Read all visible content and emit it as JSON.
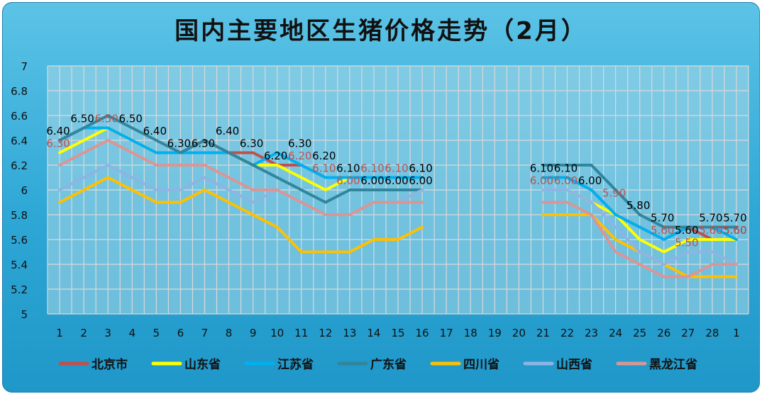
{
  "chart_data": {
    "type": "line",
    "title": "国内主要地区生猪价格走势（2月）",
    "xlabel": "",
    "ylabel": "",
    "ylim": [
      5,
      7
    ],
    "y_ticks": [
      "5",
      "5.2",
      "5.4",
      "5.6",
      "5.8",
      "6",
      "6.2",
      "6.4",
      "6.6",
      "6.8",
      "7"
    ],
    "categories": [
      "1",
      "2",
      "3",
      "4",
      "5",
      "6",
      "7",
      "8",
      "9",
      "10",
      "11",
      "12",
      "13",
      "14",
      "15",
      "16",
      "17",
      "18",
      "19",
      "20",
      "21",
      "22",
      "23",
      "24",
      "25",
      "26",
      "27",
      "28",
      "1"
    ],
    "grid": true,
    "legend_position": "bottom",
    "series": [
      {
        "name": "北京市",
        "color": "#c0504d",
        "values": [
          6.4,
          6.5,
          6.5,
          6.4,
          6.3,
          6.3,
          6.4,
          6.3,
          6.3,
          6.2,
          6.2,
          6.1,
          6.1,
          6.1,
          6.1,
          6.1,
          null,
          null,
          null,
          null,
          6.1,
          6.1,
          6.0,
          5.8,
          5.7,
          5.6,
          5.7,
          5.6,
          5.6
        ]
      },
      {
        "name": "山东省",
        "color": "#ffff00",
        "values": [
          6.3,
          6.4,
          6.5,
          6.4,
          6.3,
          6.3,
          6.3,
          6.3,
          6.2,
          6.2,
          6.1,
          6.0,
          6.1,
          6.1,
          6.1,
          6.1,
          null,
          null,
          null,
          null,
          6.0,
          6.0,
          5.9,
          5.8,
          5.6,
          5.5,
          5.6,
          5.6,
          5.6
        ]
      },
      {
        "name": "江苏省",
        "color": "#00b0f0",
        "values": [
          6.4,
          6.5,
          6.5,
          6.4,
          6.3,
          6.3,
          6.3,
          6.3,
          6.2,
          6.3,
          6.2,
          6.1,
          6.1,
          6.1,
          6.1,
          6.1,
          null,
          null,
          null,
          null,
          6.1,
          6.1,
          6.0,
          5.8,
          5.7,
          5.6,
          5.7,
          5.7,
          5.6
        ]
      },
      {
        "name": "广东省",
        "color": "#31859c",
        "values": [
          6.4,
          6.5,
          6.6,
          6.5,
          6.4,
          6.3,
          6.4,
          6.3,
          6.2,
          6.1,
          6.0,
          5.9,
          6.0,
          6.0,
          6.0,
          6.0,
          null,
          null,
          null,
          null,
          6.2,
          6.2,
          6.2,
          6.0,
          5.8,
          5.7,
          5.7,
          5.7,
          5.7
        ]
      },
      {
        "name": "四川省",
        "color": "#ffc000",
        "values": [
          5.9,
          6.0,
          6.1,
          6.0,
          5.9,
          5.9,
          6.0,
          5.9,
          5.8,
          5.7,
          5.5,
          5.5,
          5.5,
          5.6,
          5.6,
          5.7,
          null,
          null,
          null,
          null,
          5.8,
          5.8,
          5.8,
          5.6,
          5.5,
          5.4,
          5.3,
          5.3,
          5.3
        ]
      },
      {
        "name": "山西省",
        "color": "#8eb4e3",
        "values": [
          6.0,
          6.1,
          6.2,
          6.1,
          6.0,
          6.0,
          6.1,
          6.0,
          5.9,
          6.0,
          5.9,
          5.8,
          5.8,
          5.9,
          5.9,
          6.0,
          null,
          null,
          null,
          null,
          6.0,
          6.0,
          5.9,
          5.7,
          5.5,
          5.4,
          5.5,
          5.5,
          5.4
        ]
      },
      {
        "name": "黑龙江省",
        "color": "#d99694",
        "values": [
          6.2,
          6.3,
          6.4,
          6.3,
          6.2,
          6.2,
          6.2,
          6.1,
          6.0,
          6.0,
          5.9,
          5.8,
          5.8,
          5.9,
          5.9,
          5.9,
          null,
          null,
          null,
          null,
          5.9,
          5.9,
          5.8,
          5.5,
          5.4,
          5.3,
          5.3,
          5.4,
          5.4
        ]
      }
    ],
    "data_labels": [
      {
        "text": "6.40",
        "x": "1",
        "y": 6.4,
        "color": "#000000"
      },
      {
        "text": "6.50",
        "x": "2",
        "y": 6.5,
        "color": "#000000"
      },
      {
        "text": "6.50",
        "x": "3",
        "y": 6.5,
        "color": "#c0504d"
      },
      {
        "text": "6.50",
        "x": "4",
        "y": 6.5,
        "color": "#000000"
      },
      {
        "text": "6.30",
        "x": "1",
        "y": 6.3,
        "color": "#c0504d"
      },
      {
        "text": "6.40",
        "x": "5",
        "y": 6.4,
        "color": "#000000"
      },
      {
        "text": "6.30",
        "x": "6",
        "y": 6.3,
        "color": "#000000"
      },
      {
        "text": "6.30",
        "x": "7",
        "y": 6.3,
        "color": "#000000"
      },
      {
        "text": "6.40",
        "x": "8",
        "y": 6.4,
        "color": "#000000"
      },
      {
        "text": "6.30",
        "x": "9",
        "y": 6.3,
        "color": "#000000"
      },
      {
        "text": "6.20",
        "x": "10",
        "y": 6.2,
        "color": "#000000"
      },
      {
        "text": "6.20",
        "x": "11",
        "y": 6.2,
        "color": "#c0504d"
      },
      {
        "text": "6.30",
        "x": "11",
        "y": 6.3,
        "color": "#000000"
      },
      {
        "text": "6.20",
        "x": "12",
        "y": 6.2,
        "color": "#000000"
      },
      {
        "text": "6.10",
        "x": "12",
        "y": 6.1,
        "color": "#c0504d"
      },
      {
        "text": "6.10",
        "x": "13",
        "y": 6.1,
        "color": "#000000"
      },
      {
        "text": "6.10",
        "x": "14",
        "y": 6.1,
        "color": "#c0504d"
      },
      {
        "text": "6.10",
        "x": "15",
        "y": 6.1,
        "color": "#c0504d"
      },
      {
        "text": "6.10",
        "x": "16",
        "y": 6.1,
        "color": "#c0504d"
      },
      {
        "text": "6.10",
        "x": "16",
        "y": 6.1,
        "color": "#000000"
      },
      {
        "text": "6.00",
        "x": "13",
        "y": 6.0,
        "color": "#c0504d"
      },
      {
        "text": "6.00",
        "x": "14",
        "y": 6.0,
        "color": "#000000"
      },
      {
        "text": "6.00",
        "x": "15",
        "y": 6.0,
        "color": "#000000"
      },
      {
        "text": "6.00",
        "x": "16",
        "y": 6.0,
        "color": "#000000"
      },
      {
        "text": "6.10",
        "x": "21",
        "y": 6.1,
        "color": "#000000"
      },
      {
        "text": "6.10",
        "x": "22",
        "y": 6.1,
        "color": "#000000"
      },
      {
        "text": "6.00",
        "x": "21",
        "y": 6.0,
        "color": "#c0504d"
      },
      {
        "text": "6.00",
        "x": "22",
        "y": 6.0,
        "color": "#c0504d"
      },
      {
        "text": "6.00",
        "x": "23",
        "y": 6.0,
        "color": "#000000"
      },
      {
        "text": "5.90",
        "x": "24",
        "y": 5.9,
        "color": "#c0504d"
      },
      {
        "text": "5.80",
        "x": "25",
        "y": 5.8,
        "color": "#000000"
      },
      {
        "text": "5.70",
        "x": "26",
        "y": 5.7,
        "color": "#000000"
      },
      {
        "text": "5.60",
        "x": "26",
        "y": 5.6,
        "color": "#c0504d"
      },
      {
        "text": "5.60",
        "x": "27",
        "y": 5.6,
        "color": "#000000"
      },
      {
        "text": "5.50",
        "x": "27",
        "y": 5.5,
        "color": "#c0504d"
      },
      {
        "text": "5.70",
        "x": "28",
        "y": 5.7,
        "color": "#000000"
      },
      {
        "text": "5.60",
        "x": "28",
        "y": 5.6,
        "color": "#c0504d"
      },
      {
        "text": "5.70",
        "x": "1",
        "y": 5.7,
        "color": "#000000"
      },
      {
        "text": "5.60",
        "x": "1",
        "y": 5.6,
        "color": "#000000"
      },
      {
        "text": "5.60",
        "x": "1",
        "y": 5.6,
        "color": "#c0504d"
      }
    ]
  }
}
